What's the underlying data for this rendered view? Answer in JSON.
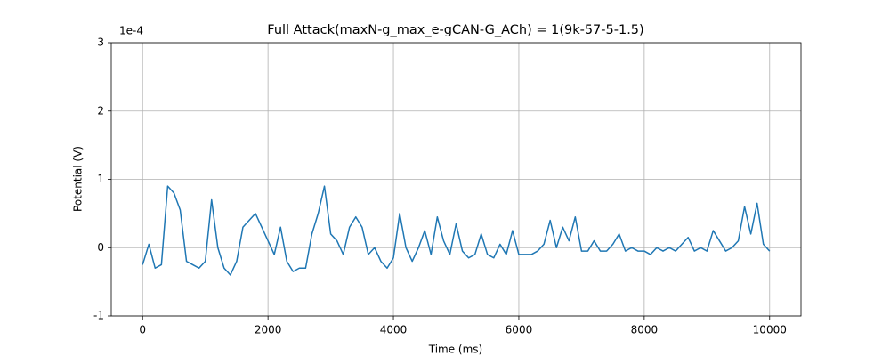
{
  "chart_data": {
    "type": "line",
    "title": "Full Attack(maxN-g_max_e-gCAN-G_ACh) = 1(9k-57-5-1.5)",
    "xlabel": "Time (ms)",
    "ylabel": "Potential (V)",
    "y_offset_label": "1e-4",
    "x": [
      0,
      100,
      200,
      300,
      400,
      500,
      600,
      700,
      800,
      900,
      1000,
      1100,
      1200,
      1300,
      1400,
      1500,
      1600,
      1700,
      1800,
      1900,
      2000,
      2100,
      2200,
      2300,
      2400,
      2500,
      2600,
      2700,
      2800,
      2900,
      3000,
      3100,
      3200,
      3300,
      3400,
      3500,
      3600,
      3700,
      3800,
      3900,
      4000,
      4100,
      4200,
      4300,
      4400,
      4500,
      4600,
      4700,
      4800,
      4900,
      5000,
      5100,
      5200,
      5300,
      5400,
      5500,
      5600,
      5700,
      5800,
      5900,
      6000,
      6100,
      6200,
      6300,
      6400,
      6500,
      6600,
      6700,
      6800,
      6900,
      7000,
      7100,
      7200,
      7300,
      7400,
      7500,
      7600,
      7700,
      7800,
      7900,
      8000,
      8100,
      8200,
      8300,
      8400,
      8500,
      8600,
      8700,
      8800,
      8900,
      9000,
      9100,
      9200,
      9300,
      9400,
      9500,
      9600,
      9700,
      9800,
      9900,
      10000
    ],
    "series": [
      {
        "color": "#1f77b4",
        "values": [
          -0.25,
          0.05,
          -0.3,
          -0.25,
          0.9,
          0.8,
          0.55,
          -0.2,
          -0.25,
          -0.3,
          -0.2,
          0.7,
          0.0,
          -0.3,
          -0.4,
          -0.2,
          0.3,
          0.4,
          0.5,
          0.3,
          0.1,
          -0.1,
          0.3,
          -0.2,
          -0.35,
          -0.3,
          -0.3,
          0.2,
          0.5,
          0.9,
          0.2,
          0.1,
          -0.1,
          0.3,
          0.45,
          0.3,
          -0.1,
          0.0,
          -0.2,
          -0.3,
          -0.15,
          0.5,
          0.0,
          -0.2,
          0.0,
          0.25,
          -0.1,
          0.45,
          0.1,
          -0.1,
          0.35,
          -0.05,
          -0.15,
          -0.1,
          0.2,
          -0.1,
          -0.15,
          0.05,
          -0.1,
          0.25,
          -0.1,
          -0.1,
          -0.1,
          -0.05,
          0.05,
          0.4,
          0.0,
          0.3,
          0.1,
          0.45,
          -0.05,
          -0.05,
          0.1,
          -0.05,
          -0.05,
          0.05,
          0.2,
          -0.05,
          0.0,
          -0.05,
          -0.05,
          -0.1,
          0.0,
          -0.05,
          0.0,
          -0.05,
          0.05,
          0.15,
          -0.05,
          0.0,
          -0.05,
          0.25,
          0.1,
          -0.05,
          0.0,
          0.1,
          0.6,
          0.2,
          0.65,
          0.05,
          -0.05
        ]
      }
    ],
    "xlim": [
      -500,
      10500
    ],
    "xticks": [
      0,
      2000,
      4000,
      6000,
      8000,
      10000
    ],
    "ylim": [
      -1,
      3
    ],
    "yticks": [
      -1,
      0,
      1,
      2,
      3
    ],
    "grid": true
  }
}
